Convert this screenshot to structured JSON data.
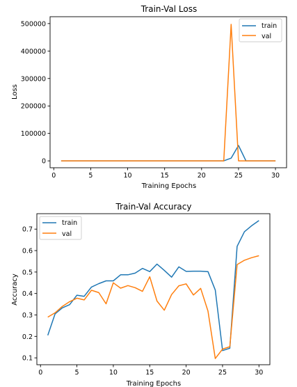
{
  "chart_data": [
    {
      "type": "line",
      "title": "Train-Val Loss",
      "xlabel": "Training Epochs",
      "ylabel": "Loss",
      "xlim": [
        -0.5,
        31.5
      ],
      "ylim": [
        -25000,
        525000
      ],
      "xticks": [
        0,
        5,
        10,
        15,
        20,
        25,
        30
      ],
      "xtick_labels": [
        "0",
        "5",
        "10",
        "15",
        "20",
        "25",
        "30"
      ],
      "yticks": [
        0,
        100000,
        200000,
        300000,
        400000,
        500000
      ],
      "ytick_labels": [
        "0",
        "100000",
        "200000",
        "300000",
        "400000",
        "500000"
      ],
      "grid": false,
      "legend_position": "upper right",
      "series": [
        {
          "name": "train",
          "color": "#1f77b4",
          "x": [
            1,
            2,
            3,
            4,
            5,
            6,
            7,
            8,
            9,
            10,
            11,
            12,
            13,
            14,
            15,
            16,
            17,
            18,
            19,
            20,
            21,
            22,
            23,
            24,
            25,
            26,
            27,
            28,
            29,
            30
          ],
          "values": [
            1,
            1,
            1,
            1,
            1,
            1,
            1,
            1,
            1,
            1,
            1,
            1,
            1,
            1,
            1,
            1,
            1,
            1,
            1,
            1,
            1,
            1,
            1,
            10000,
            56000,
            1,
            1,
            1,
            1,
            1
          ]
        },
        {
          "name": "val",
          "color": "#ff7f0e",
          "x": [
            1,
            2,
            3,
            4,
            5,
            6,
            7,
            8,
            9,
            10,
            11,
            12,
            13,
            14,
            15,
            16,
            17,
            18,
            19,
            20,
            21,
            22,
            23,
            24,
            25,
            26,
            27,
            28,
            29,
            30
          ],
          "values": [
            2,
            2,
            2,
            2,
            2,
            2,
            2,
            2,
            2,
            2,
            2,
            2,
            2,
            2,
            2,
            2,
            2,
            2,
            2,
            2,
            2,
            2,
            2,
            497000,
            2,
            2,
            2,
            2,
            2,
            2
          ]
        }
      ]
    },
    {
      "type": "line",
      "title": "Train-Val Accuracy",
      "xlabel": "Training Epochs",
      "ylabel": "Accuracy",
      "xlim": [
        -0.5,
        31.5
      ],
      "ylim": [
        0.068,
        0.772
      ],
      "xticks": [
        0,
        5,
        10,
        15,
        20,
        25,
        30
      ],
      "xtick_labels": [
        "0",
        "5",
        "10",
        "15",
        "20",
        "25",
        "30"
      ],
      "yticks": [
        0.1,
        0.2,
        0.3,
        0.4,
        0.5,
        0.6,
        0.7
      ],
      "ytick_labels": [
        "0.1",
        "0.2",
        "0.3",
        "0.4",
        "0.5",
        "0.6",
        "0.7"
      ],
      "grid": false,
      "legend_position": "upper left",
      "series": [
        {
          "name": "train",
          "color": "#1f77b4",
          "x": [
            1,
            2,
            3,
            4,
            5,
            6,
            7,
            8,
            9,
            10,
            11,
            12,
            13,
            14,
            15,
            16,
            17,
            18,
            19,
            20,
            21,
            22,
            23,
            24,
            25,
            26,
            27,
            28,
            29,
            30
          ],
          "values": [
            0.205,
            0.305,
            0.333,
            0.348,
            0.392,
            0.387,
            0.43,
            0.446,
            0.459,
            0.459,
            0.487,
            0.487,
            0.495,
            0.517,
            0.502,
            0.537,
            0.508,
            0.476,
            0.524,
            0.503,
            0.504,
            0.504,
            0.502,
            0.416,
            0.134,
            0.145,
            0.62,
            0.688,
            0.716,
            0.74
          ]
        },
        {
          "name": "val",
          "color": "#ff7f0e",
          "x": [
            1,
            2,
            3,
            4,
            5,
            6,
            7,
            8,
            9,
            10,
            11,
            12,
            13,
            14,
            15,
            16,
            17,
            18,
            19,
            20,
            21,
            22,
            23,
            24,
            25,
            26,
            27,
            28,
            29,
            30
          ],
          "values": [
            0.29,
            0.31,
            0.34,
            0.362,
            0.378,
            0.37,
            0.415,
            0.404,
            0.352,
            0.45,
            0.425,
            0.437,
            0.427,
            0.41,
            0.478,
            0.365,
            0.322,
            0.395,
            0.436,
            0.445,
            0.393,
            0.424,
            0.318,
            0.097,
            0.141,
            0.152,
            0.535,
            0.555,
            0.567,
            0.576
          ]
        }
      ]
    }
  ]
}
